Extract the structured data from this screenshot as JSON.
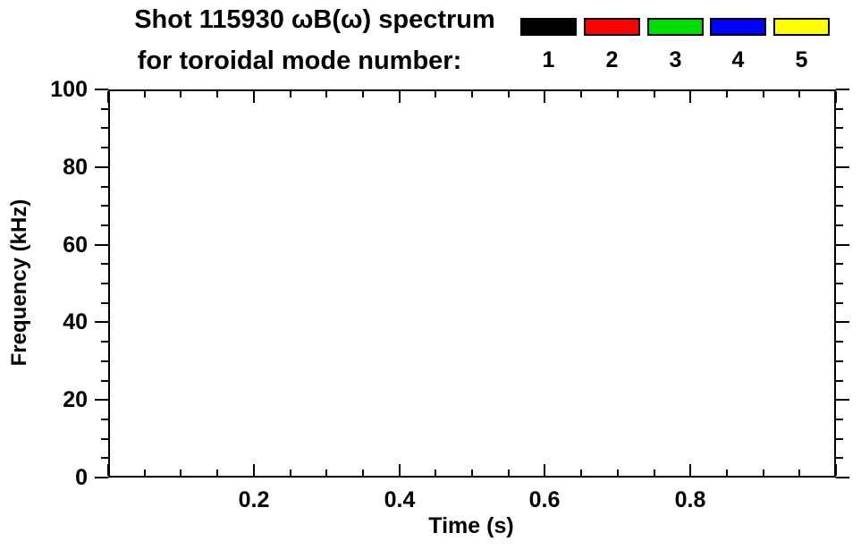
{
  "title": {
    "line1": "Shot 115930 ωB(ω) spectrum",
    "line2": "for toroidal mode number:"
  },
  "legend": {
    "entries": [
      {
        "label": "1",
        "color": "#000000"
      },
      {
        "label": "2",
        "color": "#FF0000"
      },
      {
        "label": "3",
        "color": "#00DD00"
      },
      {
        "label": "4",
        "color": "#0000FF"
      },
      {
        "label": "5",
        "color": "#FFFF00"
      }
    ]
  },
  "chart_data": {
    "type": "scatter",
    "title": "Shot 115930 ωB(ω) spectrum",
    "subtitle": "for toroidal mode number:",
    "xlabel": "Time (s)",
    "ylabel": "Frequency (kHz)",
    "xlim": [
      0.0,
      1.0
    ],
    "ylim": [
      0,
      100
    ],
    "grid": false,
    "legend_position": "top-right",
    "x_major_tick_step": 0.2,
    "x_minor_tick_step": 0.05,
    "y_major_tick_step": 20,
    "y_minor_tick_step": 5,
    "x_tick_labels": [
      {
        "value": 0.2,
        "label": "0.2"
      },
      {
        "value": 0.4,
        "label": "0.4"
      },
      {
        "value": 0.6,
        "label": "0.6"
      },
      {
        "value": 0.8,
        "label": "0.8"
      }
    ],
    "y_tick_labels": [
      {
        "value": 0,
        "label": "0"
      },
      {
        "value": 20,
        "label": "20"
      },
      {
        "value": 40,
        "label": "40"
      },
      {
        "value": 60,
        "label": "60"
      },
      {
        "value": 80,
        "label": "80"
      },
      {
        "value": 100,
        "label": "100"
      }
    ],
    "series": [
      {
        "name": "toroidal mode n=1",
        "legend_label": "1",
        "color": "#000000",
        "points": []
      },
      {
        "name": "toroidal mode n=2",
        "legend_label": "2",
        "color": "#FF0000",
        "points": []
      },
      {
        "name": "toroidal mode n=3",
        "legend_label": "3",
        "color": "#00DD00",
        "points": []
      },
      {
        "name": "toroidal mode n=4",
        "legend_label": "4",
        "color": "#0000FF",
        "points": []
      },
      {
        "name": "toroidal mode n=5",
        "legend_label": "5",
        "color": "#FFFF00",
        "points": []
      }
    ]
  }
}
